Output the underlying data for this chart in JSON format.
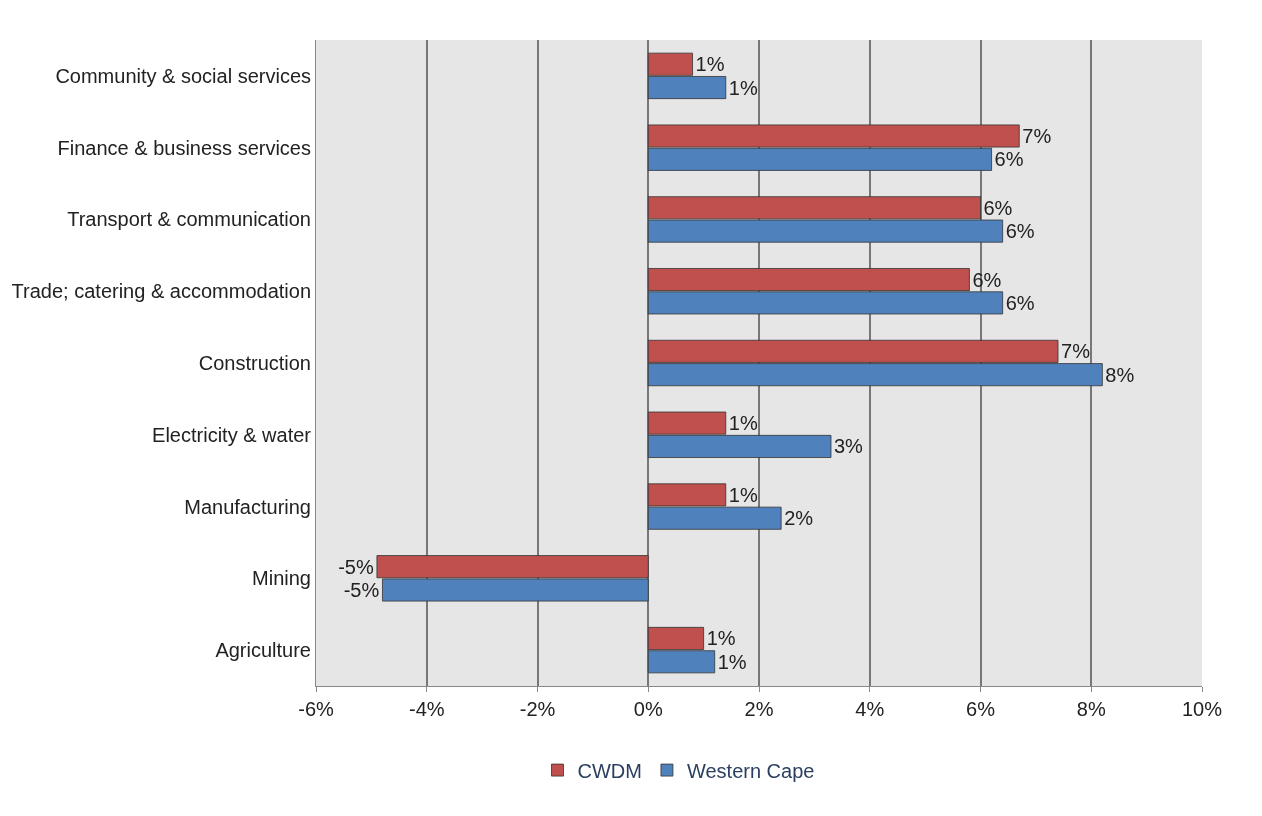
{
  "chart_data": {
    "type": "bar",
    "orientation": "horizontal",
    "categories": [
      "Community & social services",
      "Finance & business services",
      "Transport & communication",
      "Trade; catering & accommodation",
      "Construction",
      "Electricity & water",
      "Manufacturing",
      "Mining",
      "Agriculture"
    ],
    "series": [
      {
        "name": "CWDM",
        "color": "#c0504d",
        "values": [
          0.8,
          6.7,
          6.0,
          5.8,
          7.4,
          1.4,
          1.4,
          -4.9,
          1.0
        ],
        "value_labels": [
          "1%",
          "7%",
          "6%",
          "6%",
          "7%",
          "1%",
          "1%",
          "-5%",
          "1%"
        ]
      },
      {
        "name": "Western Cape",
        "color": "#4f81bd",
        "values": [
          1.4,
          6.2,
          6.4,
          6.4,
          8.2,
          3.3,
          2.4,
          -4.8,
          1.2
        ],
        "value_labels": [
          "1%",
          "6%",
          "6%",
          "6%",
          "8%",
          "3%",
          "2%",
          "-5%",
          "1%"
        ]
      }
    ],
    "xlim": [
      -6,
      10
    ],
    "xticks": [
      {
        "value": -6,
        "label": "-6%"
      },
      {
        "value": -4,
        "label": "-4%"
      },
      {
        "value": -2,
        "label": "-2%"
      },
      {
        "value": 0,
        "label": "0%"
      },
      {
        "value": 2,
        "label": "2%"
      },
      {
        "value": 4,
        "label": "4%"
      },
      {
        "value": 6,
        "label": "6%"
      },
      {
        "value": 8,
        "label": "8%"
      },
      {
        "value": 10,
        "label": "10%"
      }
    ],
    "grid": "x",
    "legend": "bottom"
  }
}
